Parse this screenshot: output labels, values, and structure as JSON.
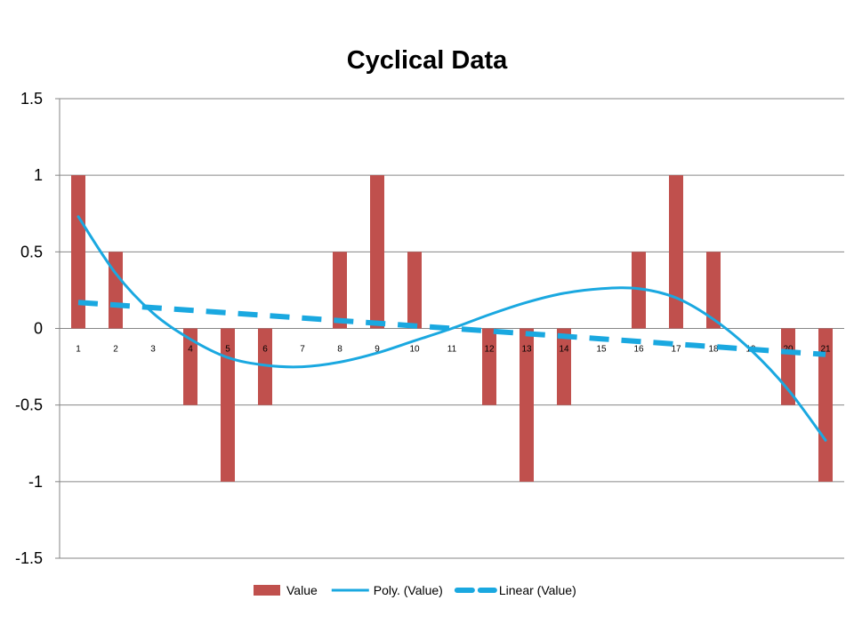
{
  "chart_data": {
    "type": "bar",
    "title": "Cyclical Data",
    "xlabel": "",
    "ylabel": "",
    "categories": [
      "1",
      "2",
      "3",
      "4",
      "5",
      "6",
      "7",
      "8",
      "9",
      "10",
      "11",
      "12",
      "13",
      "14",
      "15",
      "16",
      "17",
      "18",
      "19",
      "20",
      "21"
    ],
    "ylim": [
      -1.5,
      1.5
    ],
    "yticks": [
      "1.5",
      "1",
      "0.5",
      "0",
      "-0.5",
      "-1",
      "-1.5"
    ],
    "grid": true,
    "legend_position": "bottom",
    "series": [
      {
        "name": "Value",
        "type": "bar",
        "color": "#c0504d",
        "values": [
          1,
          0.5,
          0,
          -0.5,
          -1,
          -0.5,
          0,
          0.5,
          1,
          0.5,
          0,
          -0.5,
          -1,
          -0.5,
          0,
          0.5,
          1,
          0.5,
          0,
          -0.5,
          -1
        ]
      },
      {
        "name": "Poly. (Value)",
        "type": "line",
        "style": "solid",
        "color": "#1aa8e0",
        "values": [
          0.73,
          0.36,
          0.1,
          -0.07,
          -0.19,
          -0.24,
          -0.25,
          -0.22,
          -0.16,
          -0.08,
          0.0,
          0.09,
          0.17,
          0.23,
          0.26,
          0.26,
          0.2,
          0.06,
          -0.14,
          -0.4,
          -0.73
        ]
      },
      {
        "name": "Linear (Value)",
        "type": "line",
        "style": "dashed",
        "color": "#1aa8e0",
        "values": [
          0.17,
          0.153,
          0.136,
          0.119,
          0.102,
          0.085,
          0.068,
          0.051,
          0.034,
          0.017,
          0.0,
          -0.017,
          -0.034,
          -0.051,
          -0.068,
          -0.085,
          -0.102,
          -0.119,
          -0.136,
          -0.153,
          -0.17
        ]
      }
    ]
  }
}
